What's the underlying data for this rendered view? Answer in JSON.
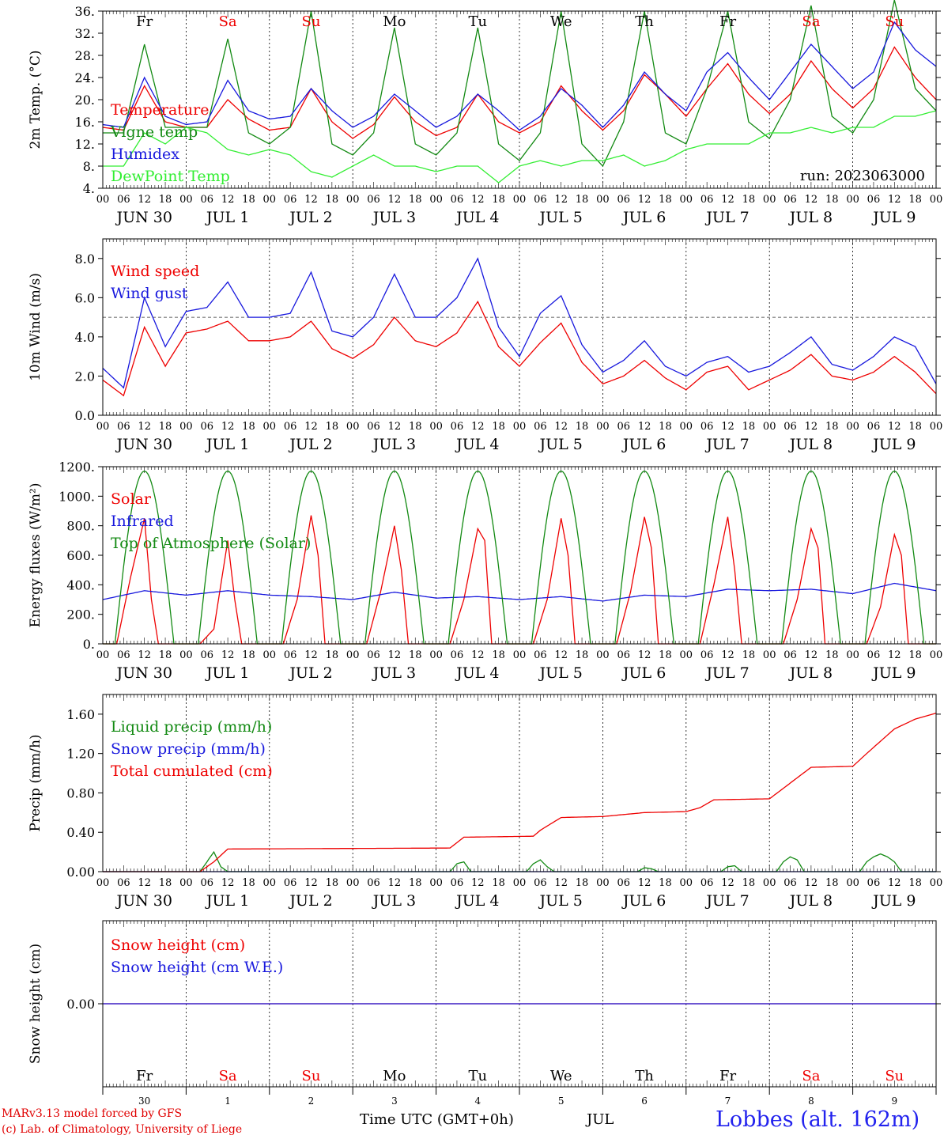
{
  "chart_data": [
    {
      "type": "line",
      "ylabel": "2m Temp. (°C)",
      "ylim": [
        4,
        36
      ],
      "yticks": [
        "4.",
        "8.",
        "12.",
        "16.",
        "20.",
        "24.",
        "28.",
        "32.",
        "36."
      ],
      "ytick_values": [
        4,
        8,
        12,
        16,
        20,
        24,
        28,
        32,
        36
      ],
      "annotation": "run: 2023063000",
      "day_labels": [
        "Fr",
        "Sa",
        "Su",
        "Mo",
        "Tu",
        "We",
        "Th",
        "Fr",
        "Sa",
        "Su"
      ],
      "series": [
        {
          "name": "Temperature",
          "color": "#ee0000",
          "x_hours": [
            0,
            6,
            12,
            18,
            24,
            30,
            36,
            42,
            48,
            54,
            60,
            66,
            72,
            78,
            84,
            90,
            96,
            102,
            108,
            114,
            120,
            126,
            132,
            138,
            144,
            150,
            156,
            162,
            168,
            174,
            180,
            186,
            192,
            198,
            204,
            210,
            216,
            222,
            228,
            234,
            240
          ],
          "values": [
            15,
            14.5,
            22.5,
            16,
            15,
            15,
            20,
            16.5,
            14.5,
            15,
            22,
            16,
            13,
            15.5,
            20.5,
            16,
            13.5,
            15,
            21,
            16,
            14,
            16,
            22.5,
            18,
            14.5,
            18,
            24.5,
            21,
            17,
            22,
            26.5,
            21,
            17.5,
            21,
            27,
            22,
            18.5,
            22,
            29.5,
            24,
            20
          ]
        },
        {
          "name": "Vigne temp",
          "color": "#138a13",
          "x_hours": [
            0,
            6,
            12,
            18,
            24,
            30,
            36,
            42,
            48,
            54,
            60,
            66,
            72,
            78,
            84,
            90,
            96,
            102,
            108,
            114,
            120,
            126,
            132,
            138,
            144,
            150,
            156,
            162,
            168,
            174,
            180,
            186,
            192,
            198,
            204,
            210,
            216,
            222,
            228,
            234,
            240
          ],
          "values": [
            14,
            14,
            30,
            15,
            15,
            15,
            31,
            14,
            12,
            15,
            36,
            12,
            10,
            14,
            33,
            12,
            10,
            14,
            33,
            12,
            9,
            14,
            36,
            12,
            8,
            16,
            36,
            14,
            12,
            22,
            36,
            16,
            13,
            20,
            37,
            17,
            14,
            20,
            38,
            22,
            18
          ]
        },
        {
          "name": "Humidex",
          "color": "#1818dd",
          "x_hours": [
            0,
            6,
            12,
            18,
            24,
            30,
            36,
            42,
            48,
            54,
            60,
            66,
            72,
            78,
            84,
            90,
            96,
            102,
            108,
            114,
            120,
            126,
            132,
            138,
            144,
            150,
            156,
            162,
            168,
            174,
            180,
            186,
            192,
            198,
            204,
            210,
            216,
            222,
            228,
            234,
            240
          ],
          "values": [
            15.5,
            15,
            24,
            17,
            15.5,
            16,
            23.5,
            18,
            16.5,
            17,
            22,
            18,
            15,
            17,
            21,
            18,
            15,
            17,
            21,
            18,
            14.5,
            17,
            22,
            19,
            15,
            19,
            25,
            21,
            18,
            25,
            28.5,
            24,
            20,
            25,
            30,
            26,
            22,
            25,
            34,
            29,
            26
          ]
        },
        {
          "name": "DewPoint Temp",
          "color": "#33ee33",
          "x_hours": [
            0,
            6,
            12,
            18,
            24,
            30,
            36,
            42,
            48,
            54,
            60,
            66,
            72,
            78,
            84,
            90,
            96,
            102,
            108,
            114,
            120,
            126,
            132,
            138,
            144,
            150,
            156,
            162,
            168,
            174,
            180,
            186,
            192,
            198,
            204,
            210,
            216,
            222,
            228,
            234,
            240
          ],
          "values": [
            8,
            8,
            14,
            12,
            15,
            14,
            11,
            10,
            11,
            10,
            7,
            6,
            8,
            10,
            8,
            8,
            7,
            8,
            8,
            5,
            8,
            9,
            8,
            9,
            9,
            10,
            8,
            9,
            11,
            12,
            12,
            12,
            14,
            14,
            15,
            14,
            15,
            15,
            17,
            17,
            18
          ]
        }
      ]
    },
    {
      "type": "line",
      "ylabel": "10m Wind (m/s)",
      "ylim": [
        0,
        9
      ],
      "yticks": [
        "0.0",
        "2.0",
        "4.0",
        "6.0",
        "8.0"
      ],
      "ytick_values": [
        0,
        2,
        4,
        6,
        8
      ],
      "reference_line": 5.0,
      "series": [
        {
          "name": "Wind speed",
          "color": "#ee0000",
          "x_hours": [
            0,
            6,
            12,
            18,
            24,
            30,
            36,
            42,
            48,
            54,
            60,
            66,
            72,
            78,
            84,
            90,
            96,
            102,
            108,
            114,
            120,
            126,
            132,
            138,
            144,
            150,
            156,
            162,
            168,
            174,
            180,
            186,
            192,
            198,
            204,
            210,
            216,
            222,
            228,
            234,
            240
          ],
          "values": [
            1.8,
            1.0,
            4.5,
            2.5,
            4.2,
            4.4,
            4.8,
            3.8,
            3.8,
            4.0,
            4.8,
            3.4,
            2.9,
            3.6,
            5.0,
            3.8,
            3.5,
            4.2,
            5.8,
            3.5,
            2.5,
            3.7,
            4.7,
            2.7,
            1.6,
            2.0,
            2.8,
            1.9,
            1.3,
            2.2,
            2.5,
            1.3,
            1.8,
            2.3,
            3.1,
            2.0,
            1.8,
            2.2,
            3.0,
            2.2,
            1.1
          ]
        },
        {
          "name": "Wind gust",
          "color": "#1818dd",
          "x_hours": [
            0,
            6,
            12,
            18,
            24,
            30,
            36,
            42,
            48,
            54,
            60,
            66,
            72,
            78,
            84,
            90,
            96,
            102,
            108,
            114,
            120,
            126,
            132,
            138,
            144,
            150,
            156,
            162,
            168,
            174,
            180,
            186,
            192,
            198,
            204,
            210,
            216,
            222,
            228,
            234,
            240
          ],
          "values": [
            2.4,
            1.4,
            6.0,
            3.5,
            5.3,
            5.5,
            6.8,
            5.0,
            5.0,
            5.2,
            7.3,
            4.3,
            4.0,
            5.0,
            7.2,
            5.0,
            5.0,
            6.0,
            8.0,
            4.5,
            3.0,
            5.2,
            6.1,
            3.6,
            2.2,
            2.8,
            3.8,
            2.5,
            2.0,
            2.7,
            3.0,
            2.2,
            2.5,
            3.2,
            4.0,
            2.6,
            2.3,
            3.0,
            4.0,
            3.5,
            1.6
          ]
        }
      ]
    },
    {
      "type": "line",
      "ylabel": "Energy fluxes (W/m²)",
      "ylim": [
        0,
        1200
      ],
      "yticks": [
        "0.",
        "200.",
        "400.",
        "600.",
        "800.",
        "1000.",
        "1200."
      ],
      "ytick_values": [
        0,
        200,
        400,
        600,
        800,
        1000,
        1200
      ],
      "series": [
        {
          "name": "Solar",
          "color": "#ee0000",
          "x_hours": [
            0,
            4,
            8,
            12,
            14,
            16,
            20,
            24,
            28,
            32,
            36,
            38,
            40,
            44,
            48,
            52,
            56,
            60,
            62,
            64,
            68,
            72,
            76,
            80,
            84,
            86,
            88,
            92,
            96,
            100,
            104,
            108,
            110,
            112,
            116,
            120,
            124,
            128,
            132,
            134,
            136,
            140,
            144,
            148,
            152,
            156,
            158,
            160,
            164,
            168,
            172,
            176,
            180,
            182,
            184,
            188,
            192,
            196,
            200,
            204,
            206,
            208,
            212,
            216,
            220,
            224,
            228,
            230,
            232,
            236,
            240
          ],
          "values": [
            0,
            0,
            450,
            850,
            300,
            0,
            0,
            0,
            0,
            100,
            700,
            300,
            0,
            0,
            0,
            0,
            300,
            870,
            600,
            0,
            0,
            0,
            0,
            350,
            800,
            500,
            0,
            0,
            0,
            0,
            300,
            780,
            700,
            0,
            0,
            0,
            0,
            300,
            850,
            600,
            0,
            0,
            0,
            0,
            350,
            860,
            650,
            0,
            0,
            0,
            0,
            400,
            860,
            500,
            0,
            0,
            0,
            0,
            300,
            780,
            650,
            0,
            0,
            0,
            0,
            250,
            740,
            600,
            0,
            0,
            0
          ]
        },
        {
          "name": "Infrared",
          "color": "#1818dd",
          "x_hours": [
            0,
            12,
            24,
            36,
            48,
            60,
            72,
            84,
            96,
            108,
            120,
            132,
            144,
            156,
            168,
            180,
            192,
            204,
            216,
            228,
            240
          ],
          "values": [
            300,
            360,
            330,
            360,
            330,
            320,
            300,
            350,
            310,
            320,
            300,
            320,
            290,
            330,
            320,
            370,
            360,
            370,
            340,
            410,
            360
          ]
        },
        {
          "name": "Top of Atmosphere (Solar)",
          "color": "#138a13",
          "peak": 1170,
          "sunrise_hour": 3.5,
          "sunset_hour": 20.5,
          "solar_noon_hour": 12
        }
      ]
    },
    {
      "type": "line",
      "ylabel": "Precip (mm/h)",
      "ylim": [
        0,
        1.8
      ],
      "yticks": [
        "0.00",
        "0.40",
        "0.80",
        "1.20",
        "1.60"
      ],
      "ytick_values": [
        0,
        0.4,
        0.8,
        1.2,
        1.6
      ],
      "series": [
        {
          "name": "Liquid precip (mm/h)",
          "color": "#138a13",
          "x_hours": [
            0,
            28,
            30,
            32,
            34,
            36,
            100,
            102,
            104,
            106,
            122,
            124,
            126,
            128,
            130,
            154,
            156,
            158,
            160,
            178,
            180,
            182,
            184,
            194,
            196,
            198,
            200,
            202,
            218,
            220,
            222,
            224,
            226,
            228,
            230,
            240
          ],
          "values": [
            0,
            0,
            0.1,
            0.2,
            0.05,
            0,
            0,
            0.08,
            0.1,
            0,
            0,
            0.08,
            0.12,
            0.05,
            0,
            0,
            0.04,
            0.03,
            0,
            0,
            0.05,
            0.06,
            0,
            0,
            0.1,
            0.15,
            0.12,
            0,
            0,
            0.1,
            0.15,
            0.18,
            0.15,
            0.1,
            0,
            0
          ]
        },
        {
          "name": "Snow precip (mm/h)",
          "color": "#1818dd",
          "x_hours": [
            0,
            240
          ],
          "values": [
            0,
            0
          ]
        },
        {
          "name": "Total cumulated (cm)",
          "color": "#ee0000",
          "x_hours": [
            0,
            28,
            32,
            36,
            100,
            104,
            124,
            126,
            132,
            144,
            156,
            168,
            172,
            176,
            192,
            198,
            204,
            216,
            220,
            228,
            234,
            240
          ],
          "values": [
            0,
            0,
            0.1,
            0.23,
            0.24,
            0.35,
            0.36,
            0.42,
            0.55,
            0.56,
            0.6,
            0.61,
            0.65,
            0.73,
            0.74,
            0.9,
            1.06,
            1.07,
            1.2,
            1.45,
            1.55,
            1.61
          ]
        }
      ]
    },
    {
      "type": "line",
      "ylabel": "Snow height (cm)",
      "ylim": [
        -1,
        1
      ],
      "yticks": [
        "0.00"
      ],
      "ytick_values": [
        0
      ],
      "series": [
        {
          "name": "Snow height (cm)",
          "color": "#ee0000",
          "x_hours": [
            0,
            240
          ],
          "values": [
            0,
            0
          ]
        },
        {
          "name": "Snow height (cm W.E.)",
          "color": "#1818dd",
          "x_hours": [
            0,
            240
          ],
          "values": [
            0,
            0
          ]
        }
      ],
      "day_labels": [
        "Fr",
        "Sa",
        "Su",
        "Mo",
        "Tu",
        "We",
        "Th",
        "Fr",
        "Sa",
        "Su"
      ],
      "day_numbers": [
        "30",
        "1",
        "2",
        "3",
        "4",
        "5",
        "6",
        "7",
        "8",
        "9"
      ]
    }
  ],
  "x_axis": {
    "hour_ticks": [
      "00",
      "06",
      "12",
      "18"
    ],
    "date_labels": [
      "JUN 30",
      "JUL  1",
      "JUL  2",
      "JUL  3",
      "JUL  4",
      "JUL  5",
      "JUL  6",
      "JUL  7",
      "JUL  8",
      "JUL  9"
    ]
  },
  "weekend_color": "#ee0000",
  "weekend_days": [
    "Sa",
    "Su"
  ],
  "footer": {
    "credit_line1": "MARv3.13 model forced by GFS",
    "credit_line2": "(c) Lab. of Climatology, University of Liege",
    "xlabel": "Time UTC (GMT+0h)",
    "month": "JUL",
    "station": "Lobbes (alt. 162m)"
  }
}
